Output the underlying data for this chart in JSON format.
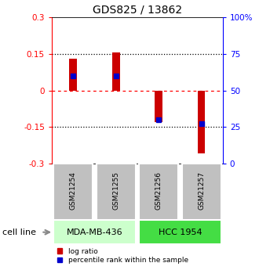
{
  "title": "GDS825 / 13862",
  "samples": [
    "GSM21254",
    "GSM21255",
    "GSM21256",
    "GSM21257"
  ],
  "log_ratios": [
    0.13,
    0.155,
    -0.13,
    -0.26
  ],
  "percentile_ranks": [
    0.6,
    0.6,
    0.3,
    0.27
  ],
  "ylim_left": [
    -0.3,
    0.3
  ],
  "ylim_right": [
    0.0,
    1.0
  ],
  "yticks_left": [
    -0.3,
    -0.15,
    0.0,
    0.15,
    0.3
  ],
  "ytick_labels_left": [
    "-0.3",
    "-0.15",
    "0",
    "0.15",
    "0.3"
  ],
  "ytick_labels_right": [
    "0",
    "25",
    "50",
    "75",
    "100%"
  ],
  "bar_color": "#cc0000",
  "blue_color": "#0000cc",
  "cell_lines": [
    "MDA-MB-436",
    "HCC 1954"
  ],
  "cell_line_spans": [
    [
      0,
      2
    ],
    [
      2,
      4
    ]
  ],
  "cell_line_color_light": "#ccffcc",
  "cell_line_color_mid": "#44dd44",
  "group_bg_color": "#c0c0c0",
  "bar_width": 0.18,
  "blue_marker_size": 5,
  "title_fontsize": 10,
  "tick_fontsize": 7.5,
  "sample_fontsize": 6.5,
  "cellline_fontsize": 8,
  "legend_fontsize": 6.5
}
